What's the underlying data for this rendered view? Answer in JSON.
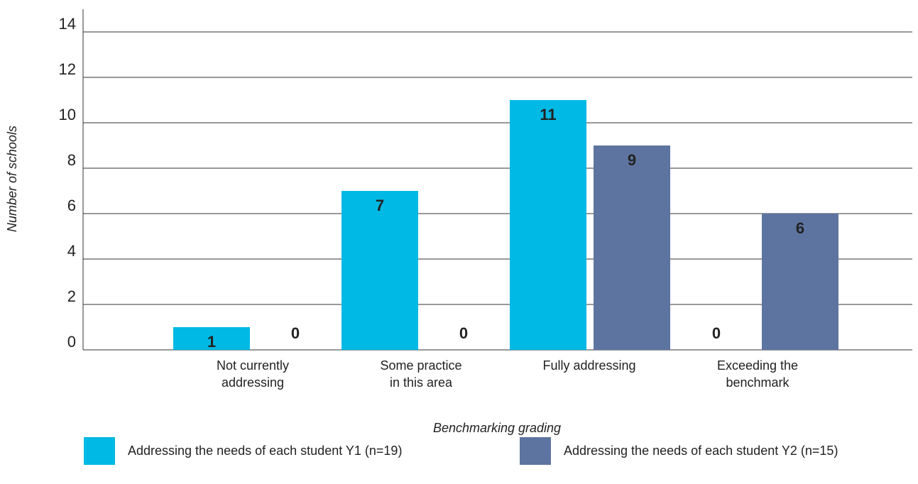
{
  "chart_data": {
    "type": "bar",
    "categories": [
      "Not currently\naddressing",
      "Some practice\nin this area",
      "Fully addressing",
      "Exceeding the\nbenchmark"
    ],
    "series": [
      {
        "name": "Addressing the needs of each student Y1 (n=19)",
        "color": "#00b9e4",
        "values": [
          1,
          7,
          11,
          0
        ]
      },
      {
        "name": "Addressing the needs of each student Y2 (n=15)",
        "color": "#5e74a0",
        "values": [
          0,
          0,
          9,
          6
        ]
      }
    ],
    "xlabel": "Benchmarking grading",
    "ylabel": "Number of schools",
    "ylim": [
      0,
      15
    ],
    "yticks": [
      0,
      2,
      4,
      6,
      8,
      10,
      12,
      14
    ],
    "grid": true,
    "legend": "bottom"
  }
}
